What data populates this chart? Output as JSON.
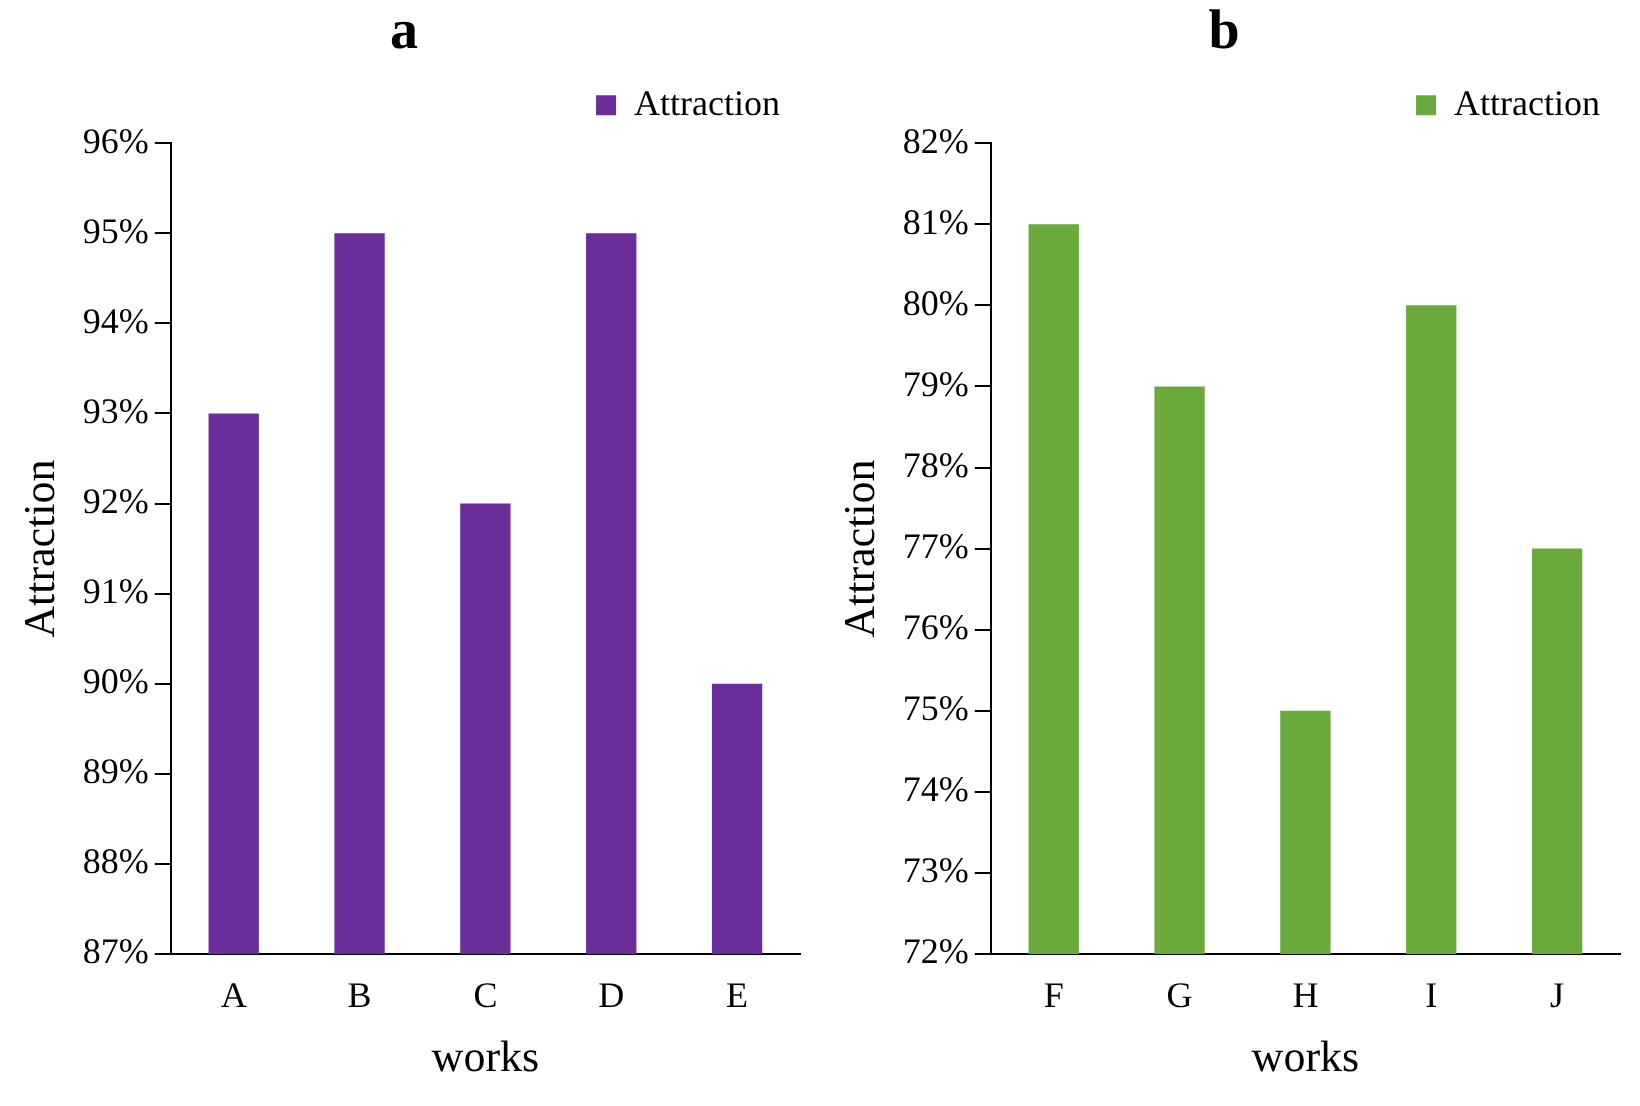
{
  "chart_data": [
    {
      "type": "bar",
      "title": "a",
      "xlabel": "works",
      "ylabel": "Attraction",
      "categories": [
        "A",
        "B",
        "C",
        "D",
        "E"
      ],
      "series": [
        {
          "name": "Attraction",
          "color": "#6a2d9a",
          "values": [
            93,
            95,
            92,
            95,
            90
          ]
        }
      ],
      "ylim": [
        87,
        96
      ],
      "yticks": [
        {
          "value": 87,
          "label": "87%"
        },
        {
          "value": 88,
          "label": "88%"
        },
        {
          "value": 89,
          "label": "89%"
        },
        {
          "value": 90,
          "label": "90%"
        },
        {
          "value": 91,
          "label": "91%"
        },
        {
          "value": 92,
          "label": "92%"
        },
        {
          "value": 93,
          "label": "93%"
        },
        {
          "value": 94,
          "label": "94%"
        },
        {
          "value": 95,
          "label": "95%"
        },
        {
          "value": 96,
          "label": "96%"
        }
      ],
      "grid": false,
      "legend": "top right"
    },
    {
      "type": "bar",
      "title": "b",
      "xlabel": "works",
      "ylabel": "Attraction",
      "categories": [
        "F",
        "G",
        "H",
        "I",
        "J"
      ],
      "series": [
        {
          "name": "Attraction",
          "color": "#6aaa3a",
          "values": [
            81,
            79,
            75,
            80,
            77
          ]
        }
      ],
      "ylim": [
        72,
        82
      ],
      "yticks": [
        {
          "value": 72,
          "label": "72%"
        },
        {
          "value": 73,
          "label": "73%"
        },
        {
          "value": 74,
          "label": "74%"
        },
        {
          "value": 75,
          "label": "75%"
        },
        {
          "value": 76,
          "label": "76%"
        },
        {
          "value": 77,
          "label": "77%"
        },
        {
          "value": 78,
          "label": "78%"
        },
        {
          "value": 79,
          "label": "79%"
        },
        {
          "value": 80,
          "label": "80%"
        },
        {
          "value": 81,
          "label": "81%"
        },
        {
          "value": 82,
          "label": "82%"
        }
      ],
      "grid": false,
      "legend": "top right"
    }
  ]
}
